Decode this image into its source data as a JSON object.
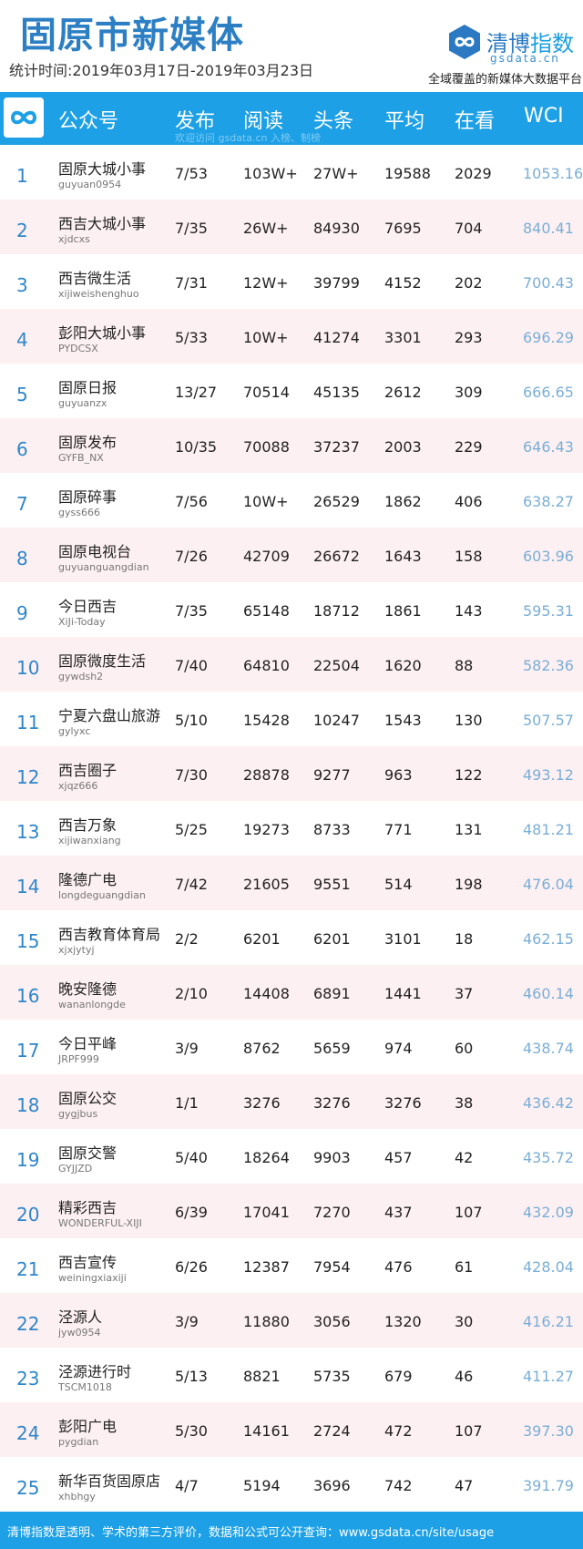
{
  "header": {
    "title": "固原市新媒体",
    "period": "统计时间:2019年03月17日-2019年03月23日",
    "brand_main": "清博",
    "brand_accent": "指数",
    "brand_domain": "gsdata.cn",
    "tagline": "全域覆盖的新媒体大数据平台"
  },
  "table": {
    "columns": {
      "account": "公众号",
      "publish": "发布",
      "reads": "阅读",
      "headline": "头条",
      "average": "平均",
      "watching": "在看",
      "wci": "WCI"
    },
    "watermark": "欢迎访问 gsdata.cn 入榜、制榜",
    "rows": [
      {
        "rank": "1",
        "name": "固原大城小事",
        "account": "guyuan0954",
        "publish": "7/53",
        "reads": "103W+",
        "headline": "27W+",
        "average": "19588",
        "watching": "2029",
        "wci": "1053.16"
      },
      {
        "rank": "2",
        "name": "西吉大城小事",
        "account": "xjdcxs",
        "publish": "7/35",
        "reads": "26W+",
        "headline": "84930",
        "average": "7695",
        "watching": "704",
        "wci": "840.41"
      },
      {
        "rank": "3",
        "name": "西吉微生活",
        "account": "xijiweishenghuo",
        "publish": "7/31",
        "reads": "12W+",
        "headline": "39799",
        "average": "4152",
        "watching": "202",
        "wci": "700.43"
      },
      {
        "rank": "4",
        "name": "彭阳大城小事",
        "account": "PYDCSX",
        "publish": "5/33",
        "reads": "10W+",
        "headline": "41274",
        "average": "3301",
        "watching": "293",
        "wci": "696.29"
      },
      {
        "rank": "5",
        "name": "固原日报",
        "account": "guyuanzx",
        "publish": "13/27",
        "reads": "70514",
        "headline": "45135",
        "average": "2612",
        "watching": "309",
        "wci": "666.65"
      },
      {
        "rank": "6",
        "name": "固原发布",
        "account": "GYFB_NX",
        "publish": "10/35",
        "reads": "70088",
        "headline": "37237",
        "average": "2003",
        "watching": "229",
        "wci": "646.43"
      },
      {
        "rank": "7",
        "name": "固原碎事",
        "account": "gyss666",
        "publish": "7/56",
        "reads": "10W+",
        "headline": "26529",
        "average": "1862",
        "watching": "406",
        "wci": "638.27"
      },
      {
        "rank": "8",
        "name": "固原电视台",
        "account": "guyuanguangdian",
        "publish": "7/26",
        "reads": "42709",
        "headline": "26672",
        "average": "1643",
        "watching": "158",
        "wci": "603.96"
      },
      {
        "rank": "9",
        "name": "今日西吉",
        "account": "XiJi-Today",
        "publish": "7/35",
        "reads": "65148",
        "headline": "18712",
        "average": "1861",
        "watching": "143",
        "wci": "595.31"
      },
      {
        "rank": "10",
        "name": "固原微度生活",
        "account": "gywdsh2",
        "publish": "7/40",
        "reads": "64810",
        "headline": "22504",
        "average": "1620",
        "watching": "88",
        "wci": "582.36"
      },
      {
        "rank": "11",
        "name": "宁夏六盘山旅游",
        "account": "gylyxc",
        "publish": "5/10",
        "reads": "15428",
        "headline": "10247",
        "average": "1543",
        "watching": "130",
        "wci": "507.57"
      },
      {
        "rank": "12",
        "name": "西吉圈子",
        "account": "xjqz666",
        "publish": "7/30",
        "reads": "28878",
        "headline": "9277",
        "average": "963",
        "watching": "122",
        "wci": "493.12"
      },
      {
        "rank": "13",
        "name": "西吉万象",
        "account": "xijiwanxiang",
        "publish": "5/25",
        "reads": "19273",
        "headline": "8733",
        "average": "771",
        "watching": "131",
        "wci": "481.21"
      },
      {
        "rank": "14",
        "name": "隆德广电",
        "account": "longdeguangdian",
        "publish": "7/42",
        "reads": "21605",
        "headline": "9551",
        "average": "514",
        "watching": "198",
        "wci": "476.04"
      },
      {
        "rank": "15",
        "name": "西吉教育体育局",
        "account": "xjxjytyj",
        "publish": "2/2",
        "reads": "6201",
        "headline": "6201",
        "average": "3101",
        "watching": "18",
        "wci": "462.15"
      },
      {
        "rank": "16",
        "name": "晚安隆德",
        "account": "wananlongde",
        "publish": "2/10",
        "reads": "14408",
        "headline": "6891",
        "average": "1441",
        "watching": "37",
        "wci": "460.14"
      },
      {
        "rank": "17",
        "name": "今日平峰",
        "account": "JRPF999",
        "publish": "3/9",
        "reads": "8762",
        "headline": "5659",
        "average": "974",
        "watching": "60",
        "wci": "438.74"
      },
      {
        "rank": "18",
        "name": "固原公交",
        "account": "gygjbus",
        "publish": "1/1",
        "reads": "3276",
        "headline": "3276",
        "average": "3276",
        "watching": "38",
        "wci": "436.42"
      },
      {
        "rank": "19",
        "name": "固原交警",
        "account": "GYJJZD",
        "publish": "5/40",
        "reads": "18264",
        "headline": "9903",
        "average": "457",
        "watching": "42",
        "wci": "435.72"
      },
      {
        "rank": "20",
        "name": "精彩西吉",
        "account": "WONDERFUL-XIJI",
        "publish": "6/39",
        "reads": "17041",
        "headline": "7270",
        "average": "437",
        "watching": "107",
        "wci": "432.09"
      },
      {
        "rank": "21",
        "name": "西吉宣传",
        "account": "weiningxiaxiji",
        "publish": "6/26",
        "reads": "12387",
        "headline": "7954",
        "average": "476",
        "watching": "61",
        "wci": "428.04"
      },
      {
        "rank": "22",
        "name": "泾源人",
        "account": "jyw0954",
        "publish": "3/9",
        "reads": "11880",
        "headline": "3056",
        "average": "1320",
        "watching": "30",
        "wci": "416.21"
      },
      {
        "rank": "23",
        "name": "泾源进行时",
        "account": "TSCM1018",
        "publish": "5/13",
        "reads": "8821",
        "headline": "5735",
        "average": "679",
        "watching": "46",
        "wci": "411.27"
      },
      {
        "rank": "24",
        "name": "彭阳广电",
        "account": "pygdian",
        "publish": "5/30",
        "reads": "14161",
        "headline": "2724",
        "average": "472",
        "watching": "107",
        "wci": "397.30"
      },
      {
        "rank": "25",
        "name": "新华百货固原店",
        "account": "xhbhgy",
        "publish": "4/7",
        "reads": "5194",
        "headline": "3696",
        "average": "742",
        "watching": "47",
        "wci": "391.79"
      }
    ]
  },
  "footer": {
    "text": "清博指数是透明、学术的第三方评价，数据和公式可公开查询：www.gsdata.cn/site/usage"
  },
  "colors": {
    "title": "#2d7fc4",
    "header_bar": "#1da0e6",
    "rank": "#2e86c9",
    "wci": "#7aaed6",
    "alt_row": "#fdf0f2"
  },
  "icons": {
    "brand_logo": "infinity-hexagon-icon",
    "table_logo": "infinity-icon"
  }
}
